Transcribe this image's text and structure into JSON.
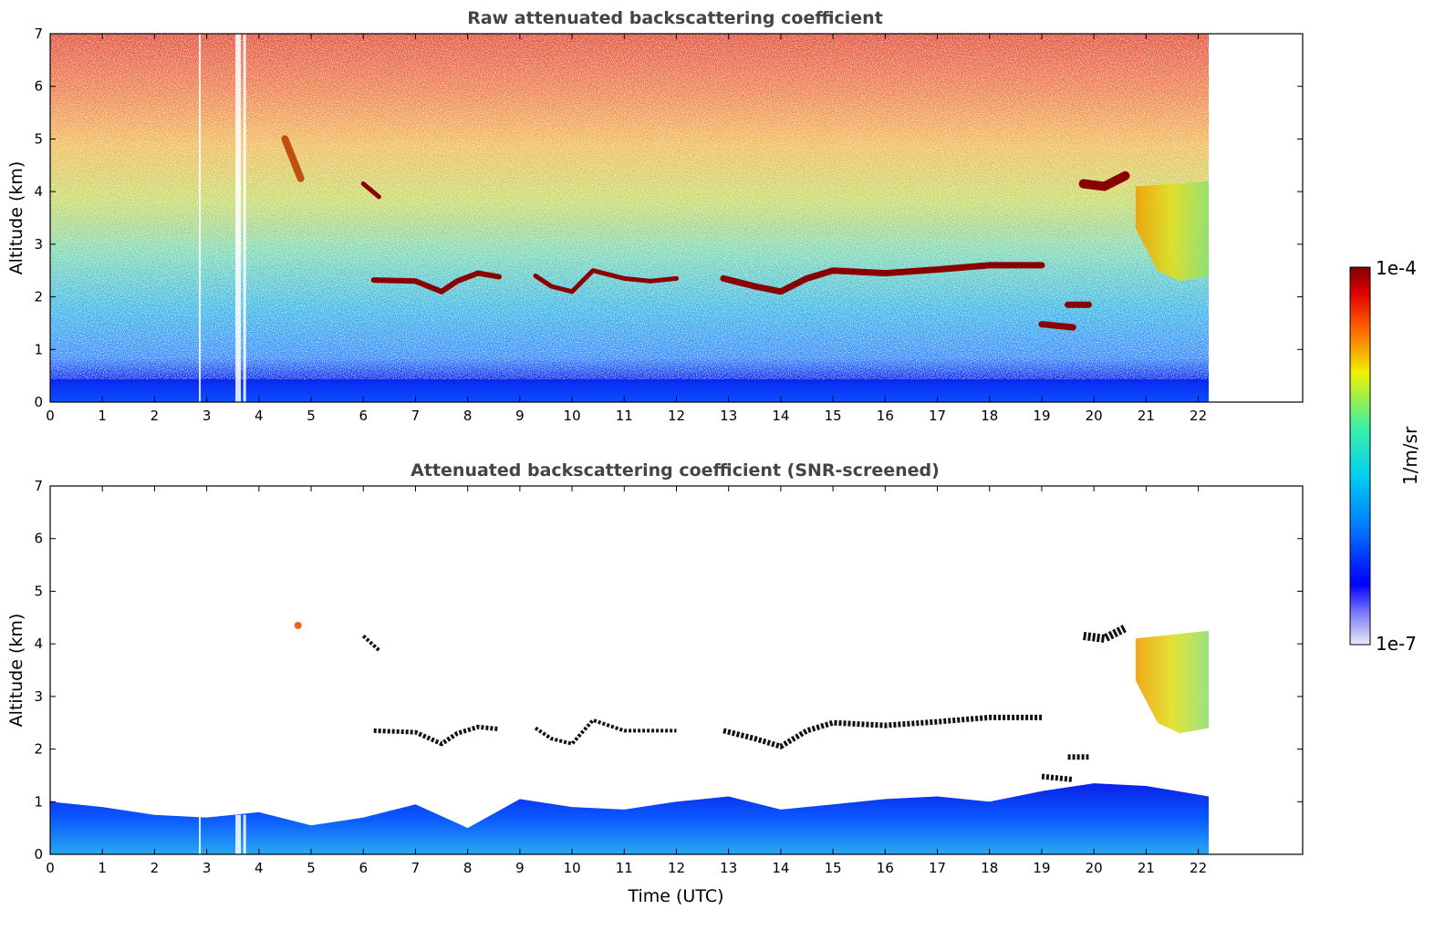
{
  "chart_data": [
    {
      "type": "heatmap",
      "title": "Raw attenuated backscattering coefficient",
      "xlabel": "",
      "ylabel": "Altitude (km)",
      "xlim": [
        0,
        24
      ],
      "ylim": [
        0,
        7
      ],
      "x_ticks": [
        "0",
        "1",
        "2",
        "3",
        "4",
        "5",
        "6",
        "7",
        "8",
        "9",
        "10",
        "11",
        "12",
        "13",
        "14",
        "15",
        "16",
        "17",
        "18",
        "19",
        "20",
        "21",
        "22"
      ],
      "y_ticks": [
        "0",
        "1",
        "2",
        "3",
        "4",
        "5",
        "6",
        "7"
      ],
      "data_extent_x": [
        0,
        22.2
      ],
      "screened": false,
      "cloud_layers": [
        {
          "x": [
            6.2,
            8.6
          ],
          "y": 2.3
        },
        {
          "x": [
            9.3,
            12.0
          ],
          "y": 2.35
        },
        {
          "x": [
            12.9,
            19.0
          ],
          "y": 2.5
        },
        {
          "x": [
            19.0,
            19.6
          ],
          "y": 1.45
        },
        {
          "x": [
            19.8,
            20.6
          ],
          "y": 4.1
        }
      ],
      "grid": false
    },
    {
      "type": "heatmap",
      "title": "Attenuated backscattering coefficient (SNR-screened)",
      "xlabel": "Time (UTC)",
      "ylabel": "Altitude (km)",
      "xlim": [
        0,
        24
      ],
      "ylim": [
        0,
        7
      ],
      "x_ticks": [
        "0",
        "1",
        "2",
        "3",
        "4",
        "5",
        "6",
        "7",
        "8",
        "9",
        "10",
        "11",
        "12",
        "13",
        "14",
        "15",
        "16",
        "17",
        "18",
        "19",
        "20",
        "21",
        "22"
      ],
      "y_ticks": [
        "0",
        "1",
        "2",
        "3",
        "4",
        "5",
        "6",
        "7"
      ],
      "data_extent_x": [
        0,
        22.2
      ],
      "screened": true,
      "grid": false
    }
  ],
  "colorbar": {
    "label": "1/m/sr",
    "max_label": "1e-4",
    "min_label": "1e-7",
    "colormap": [
      "#e8e8f8",
      "#0000ff",
      "#00a0ff",
      "#00e0d0",
      "#80f080",
      "#f0f000",
      "#ff8000",
      "#e00000",
      "#800000"
    ]
  }
}
